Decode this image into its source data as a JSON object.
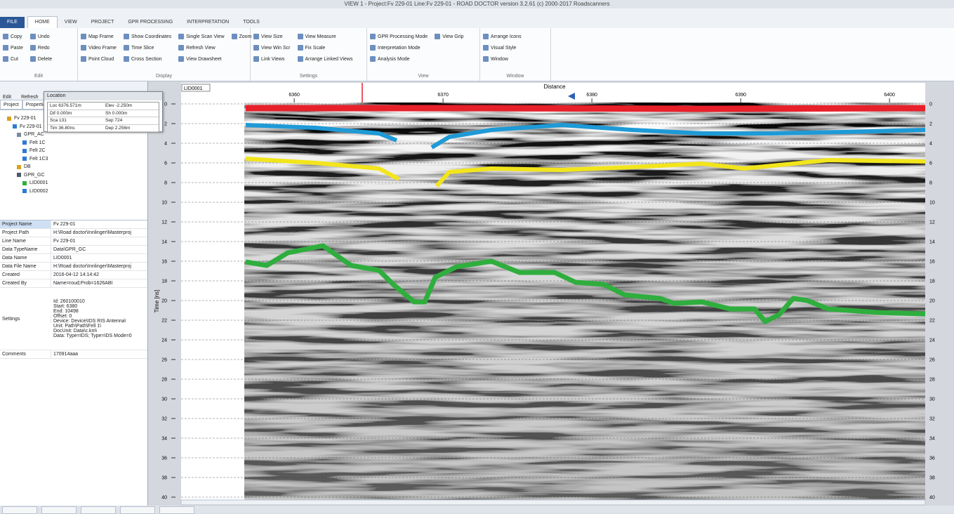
{
  "title_bar": {
    "title": "VIEW 1 - Project:Fv 229-01 Line:Fv 229-01 - ROAD DOCTOR version 3.2.61 (c) 2000-2017 Roadscanners"
  },
  "menu_tabs": [
    "FILE",
    "HOME",
    "VIEW",
    "PROJECT",
    "GPR PROCESSING",
    "INTERPRETATION",
    "TOOLS"
  ],
  "ribbon": {
    "groups": [
      {
        "label": "Edit",
        "buttons": [
          "Copy",
          "Paste",
          "Cut",
          "Undo",
          "Redo",
          "Delete"
        ]
      },
      {
        "label": "Display",
        "buttons": [
          "Map Frame",
          "Video Frame",
          "Point Cloud",
          "Show Coordinates",
          "Time Slice",
          "Cross Section",
          "Single Scan View",
          "Refresh View",
          "View Drawsheet",
          "Zoom"
        ]
      },
      {
        "label": "Settings",
        "buttons": [
          "View Size",
          "View Win Scr",
          "Link Views",
          "View Measure",
          "Fix Scale",
          "Arrange Linked Views"
        ]
      },
      {
        "label": "View",
        "buttons": [
          "GPR Processing Mode",
          "Interpretation Mode",
          "Analysis Mode",
          "View Grip"
        ]
      },
      {
        "label": "Window",
        "buttons": [
          "Arrange Icons",
          "Visual Style",
          "Window"
        ]
      }
    ]
  },
  "left_toolbar": [
    "Edit",
    "Refresh"
  ],
  "left_tabs": [
    "Project",
    "Properties"
  ],
  "tree": {
    "items": [
      "Fv 229-01",
      "Fv 229-01",
      "GPR_AC",
      "Felt 1C",
      "Felt 2C",
      "Felt 1C3",
      "DB",
      "GPR_GC",
      "LID0001",
      "LID0002"
    ]
  },
  "properties": {
    "rows": [
      {
        "name": "Project Name",
        "value": "Fv 229-01"
      },
      {
        "name": "Project Path",
        "value": "H:\\Road doctor\\Innlinger\\Masterproj"
      },
      {
        "name": "Line Name",
        "value": "Fv 229-01"
      },
      {
        "name": "Data TypeName",
        "value": "Data\\GPR_GC"
      },
      {
        "name": "Data Name",
        "value": "LID0001"
      },
      {
        "name": "Data File Name",
        "value": "H:\\Road doctor\\Innlinger\\Masterproj"
      },
      {
        "name": "Created",
        "value": "2016-04-12 14:14:42"
      },
      {
        "name": "Created By",
        "value": "Name=roud;Prob=1626ABI"
      },
      {
        "name": "Settings",
        "value": [
          "Id: 260100010",
          "Start: 6380",
          "End: 10498",
          "Offset: 0",
          "Device: Device\\IDS RIS Antenna\\",
          "Unit: Path\\Path\\Fell 1\\",
          "DocUnit: Data\\c.km\\",
          "Data: Type=IDS; Type=IDS Mode=0"
        ]
      },
      {
        "name": "Comments",
        "value": "170914aaa"
      }
    ]
  },
  "location_popup": {
    "title": "Location",
    "cells": [
      "Loc 6376.571m",
      "Elev -2.250m",
      "Dif 0.000m",
      "Sh 0.000m",
      "Sca 131",
      "Sep 724",
      "Tim 36.80ns",
      "Dep 2.256m"
    ]
  },
  "radargram": {
    "view_label": "LID0001",
    "x_label": "Distance",
    "y_label": "Time [ns]",
    "xlim": [
      6352.4,
      6402.4
    ],
    "xticks": [
      6360,
      6370,
      6380,
      6390,
      6400
    ],
    "ylim": [
      0,
      40
    ],
    "yticks": [
      0,
      2,
      4,
      6,
      8,
      10,
      12,
      14,
      16,
      18,
      20,
      22,
      24,
      26,
      28,
      30,
      32,
      34,
      36,
      38,
      40
    ]
  }
}
